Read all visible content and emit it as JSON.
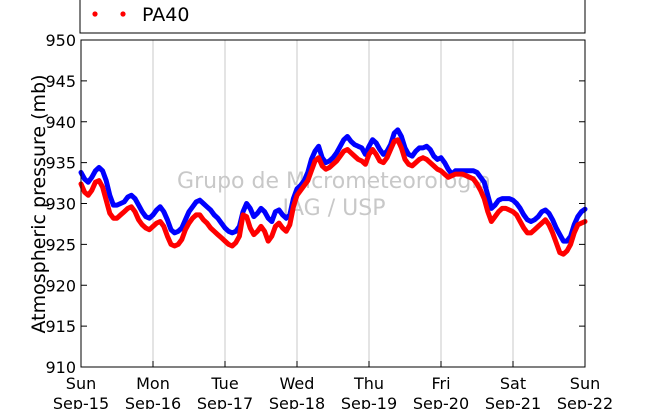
{
  "chart_data": {
    "type": "line",
    "ylabel": "Atmospheric pressure (mb)",
    "ylim": [
      910,
      950
    ],
    "yticks": [
      910,
      915,
      920,
      925,
      930,
      935,
      940,
      945,
      950
    ],
    "xlim": [
      0,
      7
    ],
    "xticks": [
      {
        "day": "Sun",
        "date": "Sep-15"
      },
      {
        "day": "Mon",
        "date": "Sep-16"
      },
      {
        "day": "Tue",
        "date": "Sep-17"
      },
      {
        "day": "Wed",
        "date": "Sep-18"
      },
      {
        "day": "Thu",
        "date": "Sep-19"
      },
      {
        "day": "Fri",
        "date": "Sep-20"
      },
      {
        "day": "Sat",
        "date": "Sep-21"
      },
      {
        "day": "Sun",
        "date": "Sep-22"
      }
    ],
    "x_grid": true,
    "legend_position": "top",
    "watermark": [
      "Grupo de Micrometeorologia",
      "IAG / USP"
    ],
    "series": [
      {
        "name": "",
        "color": "#0000ff",
        "x": [
          0,
          0.05,
          0.1,
          0.15,
          0.2,
          0.25,
          0.3,
          0.35,
          0.4,
          0.45,
          0.5,
          0.55,
          0.6,
          0.65,
          0.7,
          0.75,
          0.8,
          0.85,
          0.9,
          0.95,
          1,
          1.05,
          1.1,
          1.15,
          1.2,
          1.25,
          1.3,
          1.35,
          1.4,
          1.45,
          1.5,
          1.55,
          1.6,
          1.65,
          1.7,
          1.75,
          1.8,
          1.85,
          1.9,
          1.95,
          2,
          2.05,
          2.1,
          2.15,
          2.2,
          2.25,
          2.3,
          2.35,
          2.4,
          2.45,
          2.5,
          2.55,
          2.6,
          2.65,
          2.7,
          2.75,
          2.8,
          2.85,
          2.9,
          2.95,
          3,
          3.05,
          3.1,
          3.15,
          3.2,
          3.25,
          3.3,
          3.35,
          3.4,
          3.45,
          3.5,
          3.55,
          3.6,
          3.65,
          3.7,
          3.75,
          3.8,
          3.85,
          3.9,
          3.95,
          4,
          4.05,
          4.1,
          4.15,
          4.2,
          4.25,
          4.3,
          4.35,
          4.4,
          4.45,
          4.5,
          4.55,
          4.6,
          4.65,
          4.7,
          4.75,
          4.8,
          4.85,
          4.9,
          4.95,
          5,
          5.05,
          5.1,
          5.15,
          5.2,
          5.25,
          5.3,
          5.35,
          5.4,
          5.45,
          5.5,
          5.55,
          5.6,
          5.65,
          5.7,
          5.75,
          5.8,
          5.85,
          5.9,
          5.95,
          6,
          6.05,
          6.1,
          6.15,
          6.2,
          6.25,
          6.3,
          6.35,
          6.4,
          6.45,
          6.5,
          6.55,
          6.6,
          6.65,
          6.7,
          6.75,
          6.8,
          6.85,
          6.9,
          6.95,
          7
        ],
        "values": [
          933.8,
          933.0,
          932.6,
          933.2,
          934.0,
          934.4,
          934.0,
          932.8,
          931.0,
          929.8,
          929.8,
          930.0,
          930.2,
          930.8,
          931.0,
          930.6,
          929.8,
          929.0,
          928.4,
          928.2,
          928.6,
          929.2,
          929.6,
          929.0,
          928.0,
          926.8,
          926.4,
          926.6,
          927.0,
          928.0,
          929.0,
          929.6,
          930.2,
          930.4,
          930.0,
          929.6,
          929.2,
          928.6,
          928.2,
          927.6,
          927.0,
          926.6,
          926.4,
          926.6,
          927.2,
          929.0,
          930.0,
          929.4,
          928.4,
          928.8,
          929.4,
          929.0,
          928.2,
          927.8,
          929.0,
          929.2,
          928.6,
          928.2,
          928.6,
          930.6,
          931.8,
          932.2,
          932.8,
          933.8,
          935.4,
          936.4,
          937.0,
          935.6,
          935.0,
          935.2,
          935.6,
          936.2,
          937.0,
          937.8,
          938.2,
          937.6,
          937.2,
          937.0,
          936.8,
          936.0,
          937.0,
          937.8,
          937.4,
          936.6,
          936.0,
          936.4,
          937.2,
          938.6,
          939.0,
          938.2,
          936.8,
          936.0,
          935.8,
          936.4,
          936.8,
          936.8,
          937.0,
          936.6,
          935.8,
          935.4,
          935.6,
          935.0,
          934.2,
          933.6,
          934.0,
          934.0,
          934.0,
          934.0,
          934.0,
          934.0,
          933.8,
          933.2,
          932.6,
          931.0,
          929.4,
          929.8,
          930.4,
          930.6,
          930.6,
          930.6,
          930.4,
          930.0,
          929.4,
          928.6,
          928.0,
          927.8,
          928.0,
          928.4,
          929.0,
          929.2,
          928.8,
          928.0,
          927.0,
          926.2,
          925.4,
          925.4,
          926.0,
          927.4,
          928.4,
          929.0,
          929.3
        ]
      },
      {
        "name": "PA40",
        "color": "#ff0000",
        "x": [
          0,
          0.05,
          0.1,
          0.15,
          0.2,
          0.25,
          0.3,
          0.35,
          0.4,
          0.45,
          0.5,
          0.55,
          0.6,
          0.65,
          0.7,
          0.75,
          0.8,
          0.85,
          0.9,
          0.95,
          1,
          1.05,
          1.1,
          1.15,
          1.2,
          1.25,
          1.3,
          1.35,
          1.4,
          1.45,
          1.5,
          1.55,
          1.6,
          1.65,
          1.7,
          1.75,
          1.8,
          1.85,
          1.9,
          1.95,
          2,
          2.05,
          2.1,
          2.15,
          2.2,
          2.25,
          2.3,
          2.35,
          2.4,
          2.45,
          2.5,
          2.55,
          2.6,
          2.65,
          2.7,
          2.75,
          2.8,
          2.85,
          2.9,
          2.95,
          3,
          3.05,
          3.1,
          3.15,
          3.2,
          3.25,
          3.3,
          3.35,
          3.4,
          3.45,
          3.5,
          3.55,
          3.6,
          3.65,
          3.7,
          3.75,
          3.8,
          3.85,
          3.9,
          3.95,
          4,
          4.05,
          4.1,
          4.15,
          4.2,
          4.25,
          4.3,
          4.35,
          4.4,
          4.45,
          4.5,
          4.55,
          4.6,
          4.65,
          4.7,
          4.75,
          4.8,
          4.85,
          4.9,
          4.95,
          5,
          5.05,
          5.1,
          5.15,
          5.2,
          5.25,
          5.3,
          5.35,
          5.4,
          5.45,
          5.5,
          5.55,
          5.6,
          5.65,
          5.7,
          5.75,
          5.8,
          5.85,
          5.9,
          5.95,
          6,
          6.05,
          6.1,
          6.15,
          6.2,
          6.25,
          6.3,
          6.35,
          6.4,
          6.45,
          6.5,
          6.55,
          6.6,
          6.65,
          6.7,
          6.75,
          6.8,
          6.85,
          6.9,
          6.95,
          7
        ],
        "values": [
          932.4,
          931.4,
          931.0,
          931.6,
          932.6,
          932.8,
          932.0,
          930.4,
          928.8,
          928.2,
          928.2,
          928.6,
          929.0,
          929.4,
          929.6,
          929.0,
          928.0,
          927.4,
          927.0,
          926.8,
          927.2,
          927.6,
          927.8,
          927.2,
          926.0,
          925.0,
          924.8,
          925.0,
          925.6,
          926.8,
          927.6,
          928.2,
          928.6,
          928.6,
          928.0,
          927.6,
          927.0,
          926.6,
          926.2,
          925.8,
          925.4,
          925.0,
          924.8,
          925.2,
          926.0,
          928.6,
          928.4,
          927.0,
          926.2,
          926.6,
          927.2,
          926.6,
          925.4,
          926.0,
          927.2,
          927.6,
          927.0,
          926.6,
          927.4,
          929.6,
          931.0,
          931.6,
          932.2,
          932.8,
          934.0,
          935.2,
          935.6,
          934.6,
          934.2,
          934.4,
          934.8,
          935.2,
          935.8,
          936.4,
          936.6,
          936.2,
          935.8,
          935.4,
          935.2,
          934.8,
          936.0,
          936.6,
          936.0,
          935.2,
          935.0,
          935.6,
          936.6,
          937.6,
          937.8,
          936.8,
          935.4,
          934.8,
          934.6,
          935.0,
          935.4,
          935.6,
          935.4,
          935.0,
          934.6,
          934.2,
          934.0,
          933.6,
          933.2,
          933.4,
          933.6,
          933.6,
          933.6,
          933.4,
          933.2,
          933.0,
          932.4,
          931.6,
          930.6,
          929.0,
          927.8,
          928.4,
          929.0,
          929.4,
          929.4,
          929.2,
          929.0,
          928.6,
          927.8,
          927.0,
          926.4,
          926.4,
          926.8,
          927.2,
          927.6,
          928.0,
          927.4,
          926.4,
          925.2,
          924.0,
          923.8,
          924.2,
          925.0,
          926.4,
          927.4,
          927.6,
          927.8
        ]
      }
    ]
  }
}
